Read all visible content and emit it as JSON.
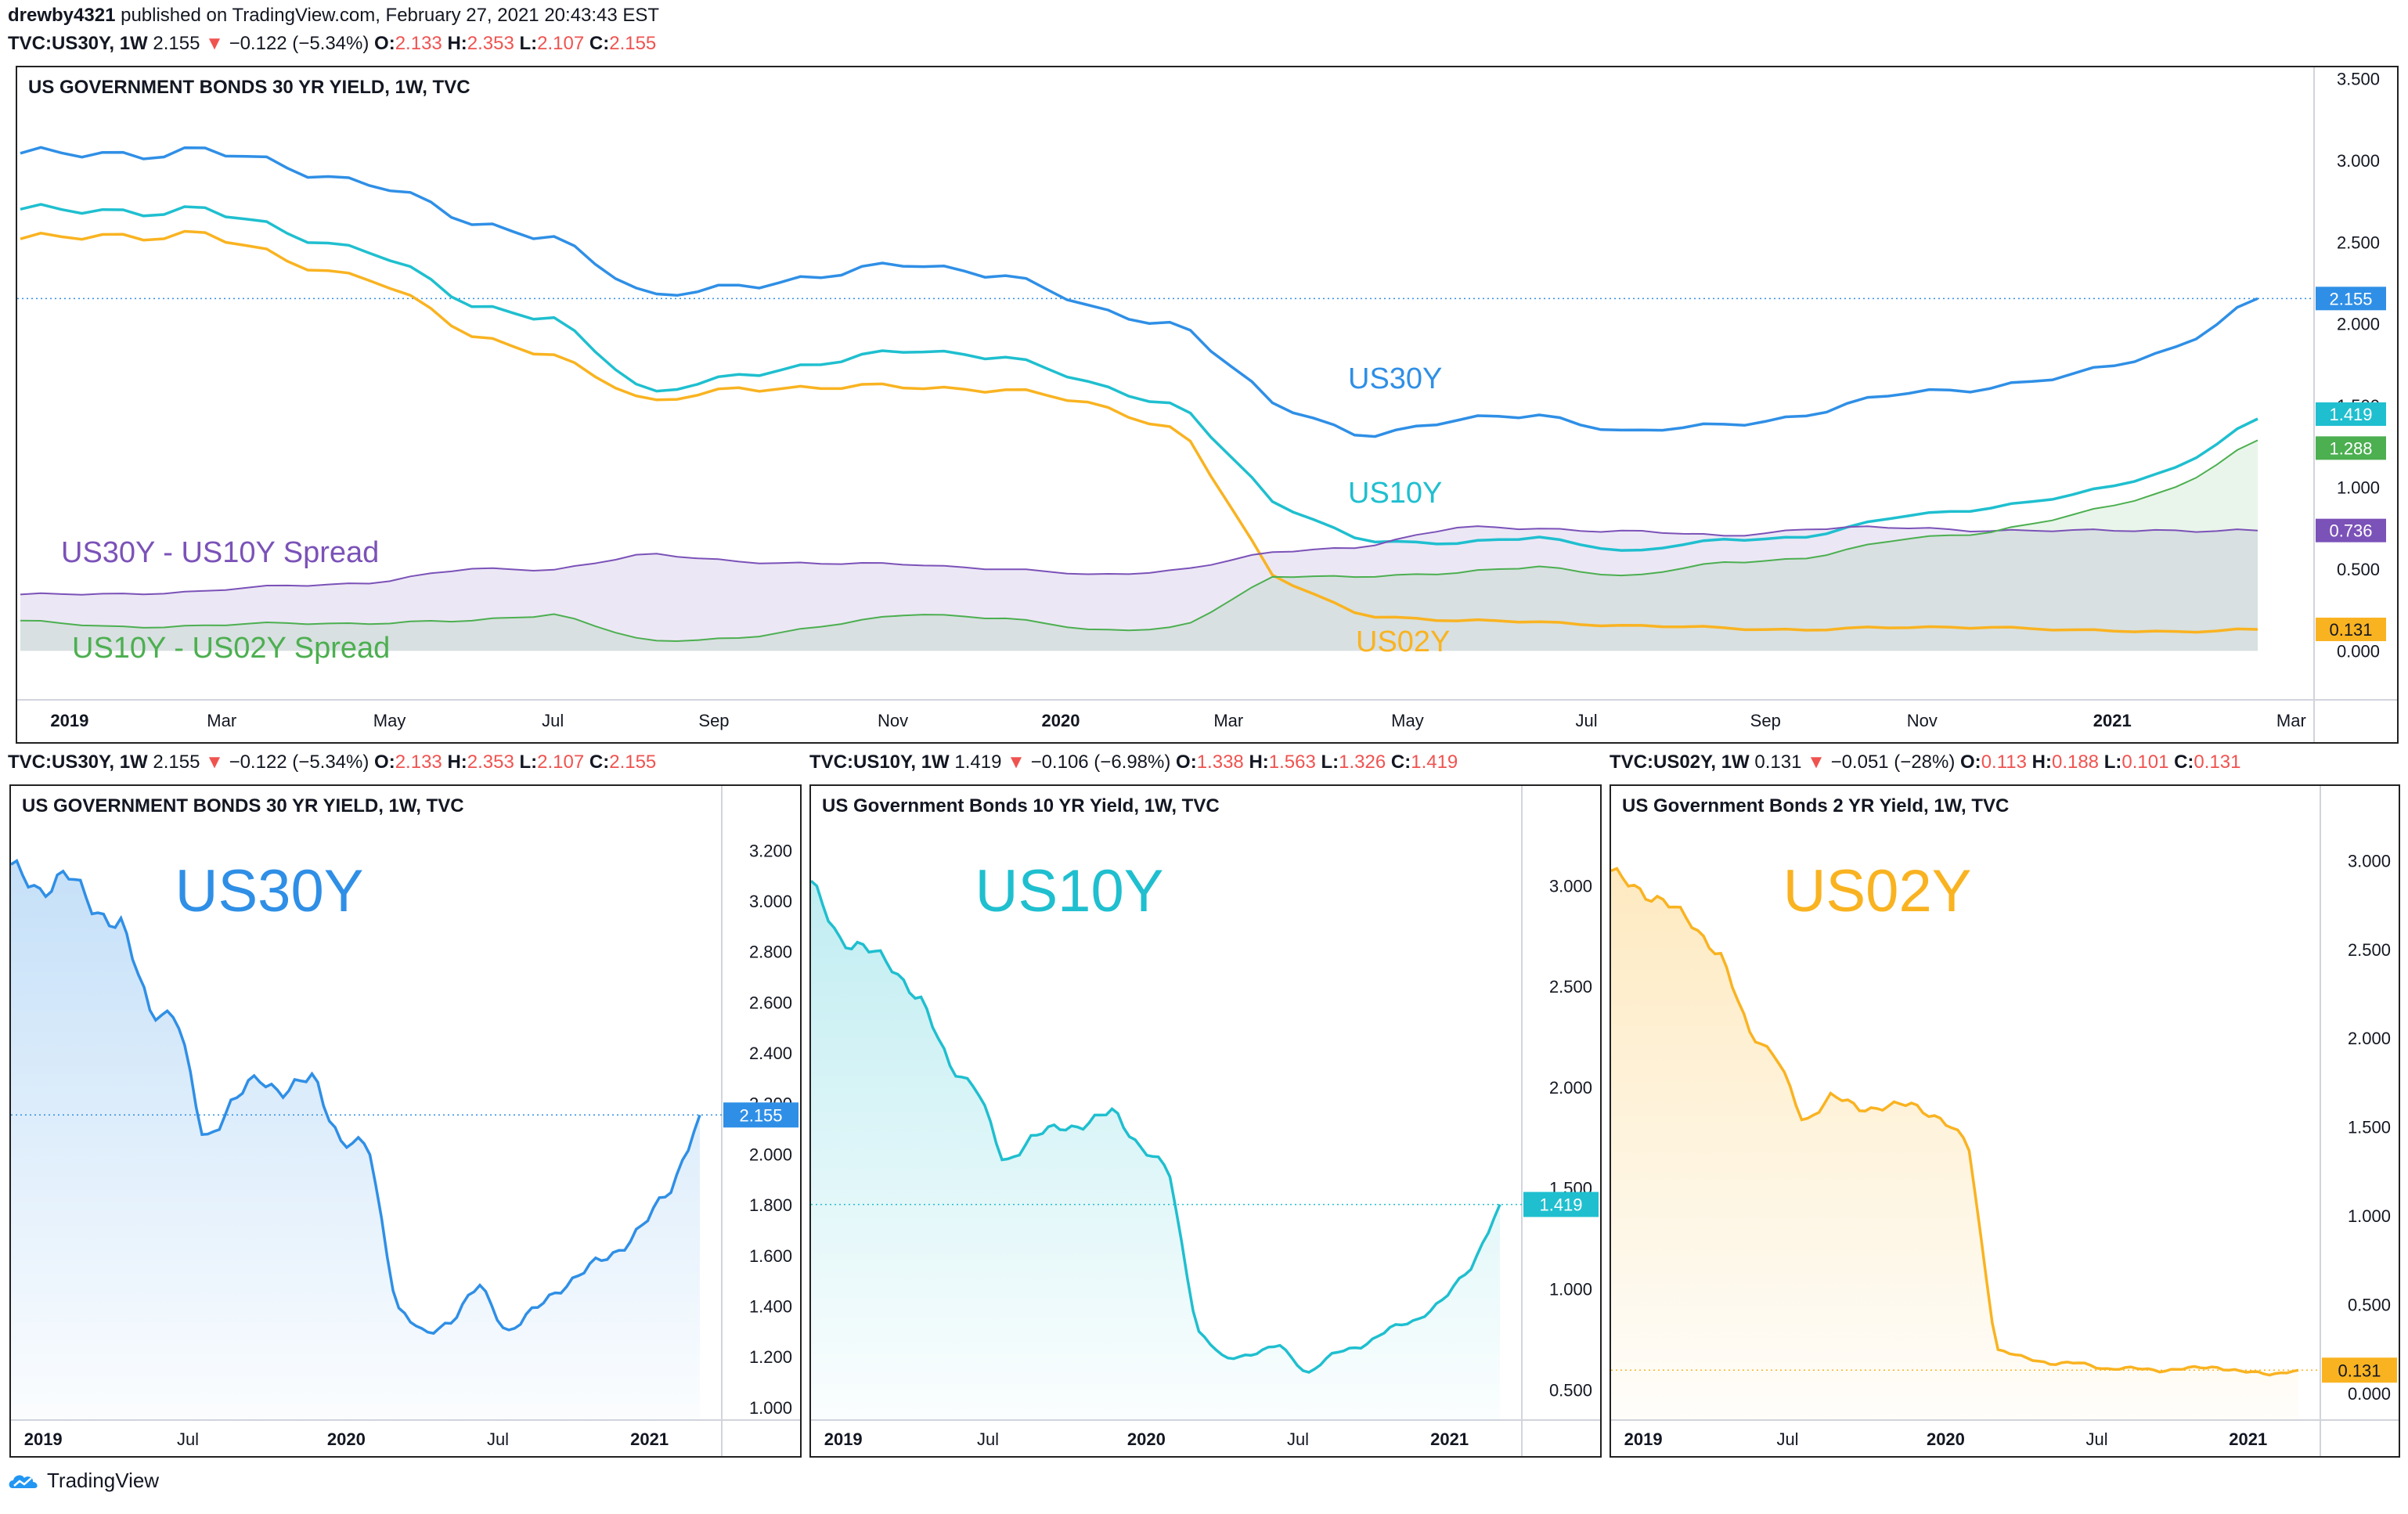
{
  "header": {
    "publisher": "drewby4321",
    "published_text": "published on TradingView.com, February 27, 2021 20:43:43 EST",
    "main_symbol": "TVC:US30Y, 1W",
    "main_last": "2.155",
    "main_change": "−0.122 (−5.34%)",
    "main_o": "2.133",
    "main_h": "2.353",
    "main_l": "2.107",
    "main_c": "2.155"
  },
  "panels": {
    "main": {
      "title": "US GOVERNMENT BONDS 30 YR YIELD, 1W, TVC"
    },
    "us30": {
      "title": "US GOVERNMENT BONDS 30 YR YIELD, 1W, TVC",
      "big_label": "US30Y",
      "symbol": "TVC:US30Y, 1W",
      "last": "2.155",
      "change": "−0.122 (−5.34%)",
      "o": "2.133",
      "h": "2.353",
      "l": "2.107",
      "c": "2.155"
    },
    "us10": {
      "title": "US Government Bonds 10 YR Yield, 1W, TVC",
      "big_label": "US10Y",
      "symbol": "TVC:US10Y, 1W",
      "last": "1.419",
      "change": "−0.106 (−6.98%)",
      "o": "1.338",
      "h": "1.563",
      "l": "1.326",
      "c": "1.419"
    },
    "us02": {
      "title": "US Government Bonds 2 YR Yield, 1W, TVC",
      "big_label": "US02Y",
      "symbol": "TVC:US02Y, 1W",
      "last": "0.131",
      "change": "−0.051 (−28%)",
      "o": "0.113",
      "h": "0.188",
      "l": "0.101",
      "c": "0.131"
    }
  },
  "footer": {
    "brand": "TradingView"
  },
  "colors": {
    "us30": "#2f8fe6",
    "us10": "#1fbfcf",
    "us02": "#f9b321",
    "spread30_10": "#7b52b8",
    "spread10_02": "#4caf50"
  },
  "chart_data": [
    {
      "type": "line",
      "title": "US GOVERNMENT BONDS 30 YR YIELD, 1W, TVC",
      "x_ticks": [
        "2019",
        "Mar",
        "May",
        "Jul",
        "Sep",
        "Nov",
        "2020",
        "Mar",
        "May",
        "Jul",
        "Sep",
        "Nov",
        "2021",
        "Mar"
      ],
      "y_ticks": [
        "3.500",
        "3.000",
        "2.500",
        "2.000",
        "1.500",
        "1.000",
        "0.500",
        "0.000"
      ],
      "ylim": [
        -0.3,
        3.55
      ],
      "x": [
        "2019-01",
        "2019-02",
        "2019-03",
        "2019-04",
        "2019-05",
        "2019-06",
        "2019-07",
        "2019-08",
        "2019-09",
        "2019-10",
        "2019-11",
        "2019-12",
        "2020-01",
        "2020-02",
        "2020-03",
        "2020-04",
        "2020-05",
        "2020-06",
        "2020-07",
        "2020-08",
        "2020-09",
        "2020-10",
        "2020-11",
        "2020-12",
        "2021-01",
        "2021-02"
      ],
      "series": [
        {
          "name": "US30Y",
          "values": [
            3.02,
            3.05,
            3.06,
            2.95,
            2.87,
            2.6,
            2.55,
            2.14,
            2.25,
            2.28,
            2.38,
            2.3,
            2.08,
            2.0,
            1.5,
            1.32,
            1.4,
            1.45,
            1.33,
            1.38,
            1.45,
            1.57,
            1.62,
            1.68,
            1.84,
            2.155
          ]
        },
        {
          "name": "US10Y",
          "values": [
            2.68,
            2.7,
            2.7,
            2.55,
            2.45,
            2.1,
            2.05,
            1.55,
            1.7,
            1.75,
            1.85,
            1.8,
            1.62,
            1.5,
            0.9,
            0.68,
            0.65,
            0.7,
            0.6,
            0.68,
            0.7,
            0.82,
            0.88,
            0.95,
            1.1,
            1.419
          ]
        },
        {
          "name": "US02Y",
          "values": [
            2.5,
            2.55,
            2.55,
            2.38,
            2.28,
            1.92,
            1.82,
            1.5,
            1.62,
            1.6,
            1.62,
            1.6,
            1.5,
            1.35,
            0.45,
            0.22,
            0.18,
            0.18,
            0.15,
            0.14,
            0.13,
            0.14,
            0.15,
            0.12,
            0.12,
            0.131
          ]
        },
        {
          "name": "US30Y - US10Y Spread",
          "values": [
            0.34,
            0.35,
            0.36,
            0.4,
            0.42,
            0.5,
            0.5,
            0.59,
            0.55,
            0.53,
            0.53,
            0.5,
            0.46,
            0.5,
            0.6,
            0.64,
            0.75,
            0.75,
            0.73,
            0.7,
            0.75,
            0.75,
            0.74,
            0.73,
            0.74,
            0.736
          ]
        },
        {
          "name": "US10Y - US02Y Spread",
          "values": [
            0.18,
            0.15,
            0.15,
            0.17,
            0.17,
            0.18,
            0.23,
            0.05,
            0.08,
            0.15,
            0.23,
            0.2,
            0.12,
            0.15,
            0.45,
            0.46,
            0.47,
            0.52,
            0.45,
            0.54,
            0.57,
            0.68,
            0.73,
            0.83,
            0.98,
            1.288
          ]
        }
      ],
      "price_labels": [
        "2.155",
        "1.419",
        "1.288",
        "0.736",
        "0.131"
      ]
    },
    {
      "type": "area",
      "title": "US GOVERNMENT BONDS 30 YR YIELD, 1W, TVC",
      "x_ticks": [
        "2019",
        "Jul",
        "2020",
        "Jul",
        "2021"
      ],
      "y_ticks": [
        "3.200",
        "3.000",
        "2.800",
        "2.600",
        "2.400",
        "2.200",
        "2.000",
        "1.800",
        "1.600",
        "1.400",
        "1.200",
        "1.000"
      ],
      "ylim": [
        0.95,
        3.3
      ],
      "series": [
        {
          "name": "US30Y",
          "values": [
            3.12,
            3.05,
            3.1,
            2.98,
            2.9,
            2.58,
            2.55,
            2.05,
            2.2,
            2.3,
            2.25,
            2.3,
            2.05,
            2.02,
            1.4,
            1.28,
            1.35,
            1.48,
            1.3,
            1.38,
            1.48,
            1.55,
            1.62,
            1.72,
            1.88,
            2.155
          ]
        }
      ],
      "price_label": "2.155"
    },
    {
      "type": "area",
      "title": "US Government Bonds 10 YR Yield, 1W, TVC",
      "x_ticks": [
        "2019",
        "Jul",
        "2020",
        "Jul",
        "2021"
      ],
      "y_ticks": [
        "3.000",
        "2.500",
        "2.000",
        "1.500",
        "1.000",
        "0.500"
      ],
      "ylim": [
        0.35,
        3.3
      ],
      "series": [
        {
          "name": "US10Y",
          "values": [
            3.0,
            2.75,
            2.68,
            2.6,
            2.42,
            2.12,
            2.0,
            1.62,
            1.75,
            1.8,
            1.82,
            1.88,
            1.7,
            1.58,
            0.8,
            0.65,
            0.68,
            0.72,
            0.58,
            0.68,
            0.72,
            0.8,
            0.85,
            0.95,
            1.12,
            1.419
          ]
        }
      ],
      "price_label": "1.419"
    },
    {
      "type": "area",
      "title": "US Government Bonds 2 YR Yield, 1W, TVC",
      "x_ticks": [
        "2019",
        "Jul",
        "2020",
        "Jul",
        "2021"
      ],
      "y_ticks": [
        "3.000",
        "2.500",
        "2.000",
        "1.500",
        "1.000",
        "0.500",
        "0.000"
      ],
      "ylim": [
        -0.15,
        3.2
      ],
      "series": [
        {
          "name": "US02Y",
          "values": [
            2.92,
            2.85,
            2.75,
            2.65,
            2.45,
            2.05,
            1.9,
            1.52,
            1.68,
            1.6,
            1.62,
            1.62,
            1.55,
            1.4,
            0.25,
            0.2,
            0.17,
            0.17,
            0.14,
            0.14,
            0.13,
            0.14,
            0.15,
            0.12,
            0.11,
            0.131
          ]
        }
      ],
      "price_label": "0.131"
    }
  ]
}
